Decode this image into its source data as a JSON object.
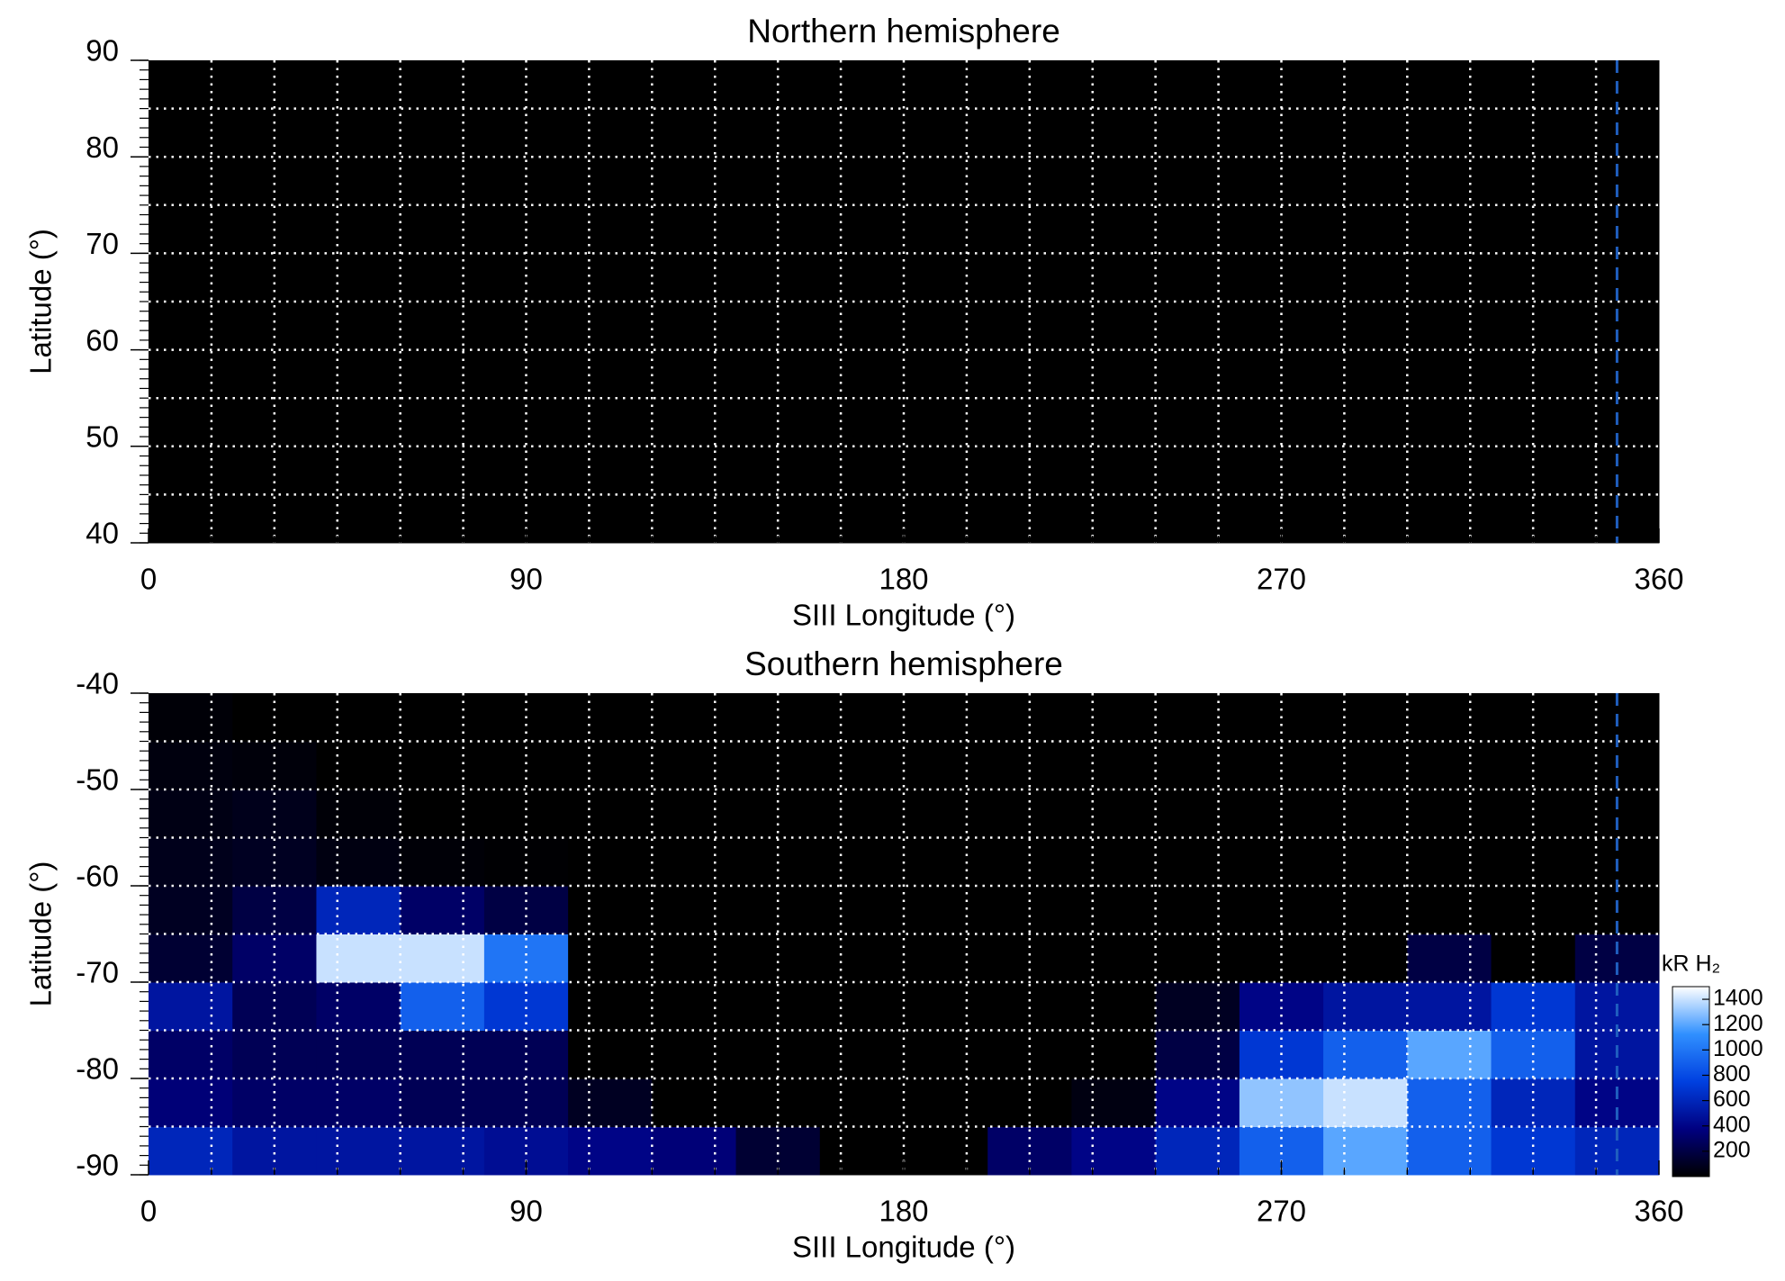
{
  "chart_data": [
    {
      "type": "heatmap",
      "title": "Northern hemisphere",
      "x_label": "SIII Longitude (°)",
      "y_label": "Latitude (°)",
      "xlim": [
        0,
        360
      ],
      "ylim": [
        40,
        90
      ],
      "xticks": [
        0,
        90,
        180,
        270,
        360
      ],
      "yticks": [
        40,
        50,
        60,
        70,
        80,
        90
      ],
      "xgrid": [
        15,
        30,
        45,
        60,
        75,
        90,
        105,
        120,
        135,
        150,
        165,
        180,
        195,
        210,
        225,
        240,
        255,
        270,
        285,
        300,
        315,
        330,
        345
      ],
      "ygrid": [
        45,
        50,
        55,
        60,
        65,
        70,
        75,
        80,
        85
      ],
      "yminor_step": 1,
      "grid": true,
      "grid_color": "#ffffff",
      "reference_line": {
        "x": 350,
        "color": "#1f5fbf"
      },
      "colormap": [
        "#000000",
        "#000080",
        "#0040e0",
        "#3090ff",
        "#ffffff"
      ],
      "clim": [
        0,
        1500
      ],
      "x_bins": [
        0,
        20,
        40,
        60,
        80,
        100,
        120,
        140,
        160,
        180,
        200,
        220,
        240,
        260,
        280,
        300,
        320,
        340,
        360
      ],
      "y_bins": [
        40,
        45,
        50,
        55,
        60,
        65,
        70,
        75,
        80,
        85,
        90
      ],
      "values": [
        [
          0,
          0,
          0,
          0,
          0,
          0,
          0,
          0,
          0,
          0,
          0,
          0,
          0,
          0,
          0,
          0,
          0,
          0
        ],
        [
          0,
          0,
          0,
          0,
          0,
          0,
          0,
          0,
          0,
          0,
          0,
          0,
          0,
          0,
          0,
          0,
          0,
          0
        ],
        [
          0,
          0,
          0,
          0,
          0,
          0,
          0,
          0,
          0,
          0,
          0,
          0,
          0,
          0,
          0,
          0,
          0,
          0
        ],
        [
          0,
          0,
          0,
          0,
          0,
          0,
          0,
          0,
          0,
          0,
          0,
          0,
          0,
          0,
          0,
          0,
          0,
          0
        ],
        [
          0,
          0,
          0,
          0,
          0,
          0,
          0,
          0,
          0,
          0,
          0,
          0,
          0,
          0,
          0,
          0,
          0,
          0
        ],
        [
          0,
          0,
          0,
          0,
          0,
          0,
          0,
          0,
          0,
          0,
          0,
          0,
          0,
          0,
          0,
          0,
          0,
          0
        ],
        [
          0,
          0,
          0,
          0,
          0,
          0,
          0,
          0,
          0,
          0,
          0,
          0,
          0,
          0,
          0,
          0,
          0,
          0
        ],
        [
          0,
          0,
          0,
          0,
          0,
          0,
          0,
          0,
          0,
          0,
          0,
          0,
          0,
          0,
          0,
          0,
          0,
          0
        ],
        [
          0,
          0,
          0,
          0,
          0,
          0,
          0,
          0,
          0,
          0,
          0,
          0,
          0,
          0,
          0,
          0,
          0,
          0
        ],
        [
          0,
          0,
          0,
          0,
          0,
          0,
          0,
          0,
          0,
          0,
          0,
          0,
          0,
          0,
          0,
          0,
          0,
          0
        ]
      ]
    },
    {
      "type": "heatmap",
      "title": "Southern hemisphere",
      "x_label": "SIII Longitude (°)",
      "y_label": "Latitude (°)",
      "xlim": [
        0,
        360
      ],
      "ylim": [
        -90,
        -40
      ],
      "xticks": [
        0,
        90,
        180,
        270,
        360
      ],
      "yticks": [
        -90,
        -80,
        -70,
        -60,
        -50,
        -40
      ],
      "xgrid": [
        15,
        30,
        45,
        60,
        75,
        90,
        105,
        120,
        135,
        150,
        165,
        180,
        195,
        210,
        225,
        240,
        255,
        270,
        285,
        300,
        315,
        330,
        345
      ],
      "ygrid": [
        -85,
        -80,
        -75,
        -70,
        -65,
        -60,
        -55,
        -50,
        -45
      ],
      "yminor_step": 1,
      "grid": true,
      "grid_color": "#ffffff",
      "reference_line": {
        "x": 350,
        "color": "#1f5fbf"
      },
      "colormap": [
        "#000000",
        "#000080",
        "#0040e0",
        "#3090ff",
        "#ffffff"
      ],
      "clim": [
        0,
        1500
      ],
      "colorbar": {
        "label": "kR H₂",
        "ticks": [
          200,
          400,
          600,
          800,
          1000,
          1200,
          1400
        ]
      },
      "x_bins": [
        0,
        20,
        40,
        60,
        80,
        100,
        120,
        140,
        160,
        180,
        200,
        220,
        240,
        260,
        280,
        300,
        320,
        340,
        360
      ],
      "y_bins": [
        -90,
        -85,
        -80,
        -75,
        -70,
        -65,
        -60,
        -55,
        -50,
        -45,
        -40
      ],
      "values": [
        [
          600,
          500,
          500,
          500,
          450,
          400,
          350,
          150,
          0,
          0,
          300,
          400,
          600,
          900,
          1200,
          900,
          700,
          600
        ],
        [
          350,
          300,
          300,
          250,
          250,
          100,
          0,
          0,
          0,
          0,
          0,
          50,
          400,
          1300,
          1400,
          900,
          600,
          400
        ],
        [
          300,
          250,
          250,
          250,
          250,
          0,
          0,
          0,
          0,
          0,
          0,
          0,
          200,
          700,
          900,
          1200,
          900,
          500
        ],
        [
          500,
          250,
          300,
          900,
          700,
          0,
          0,
          0,
          0,
          0,
          0,
          0,
          100,
          400,
          500,
          500,
          700,
          500
        ],
        [
          150,
          300,
          1400,
          1400,
          1000,
          0,
          0,
          0,
          0,
          0,
          0,
          0,
          0,
          0,
          0,
          200,
          0,
          200
        ],
        [
          100,
          200,
          600,
          300,
          200,
          0,
          0,
          0,
          0,
          0,
          0,
          0,
          0,
          0,
          0,
          0,
          0,
          0
        ],
        [
          80,
          100,
          50,
          20,
          10,
          0,
          0,
          0,
          0,
          0,
          0,
          0,
          0,
          0,
          0,
          0,
          0,
          0
        ],
        [
          60,
          80,
          20,
          0,
          0,
          0,
          0,
          0,
          0,
          0,
          0,
          0,
          0,
          0,
          0,
          0,
          0,
          0
        ],
        [
          40,
          30,
          0,
          0,
          0,
          0,
          0,
          0,
          0,
          0,
          0,
          0,
          0,
          0,
          0,
          0,
          0,
          0
        ],
        [
          20,
          0,
          0,
          0,
          0,
          0,
          0,
          0,
          0,
          0,
          0,
          0,
          0,
          0,
          0,
          0,
          0,
          0
        ]
      ]
    }
  ]
}
